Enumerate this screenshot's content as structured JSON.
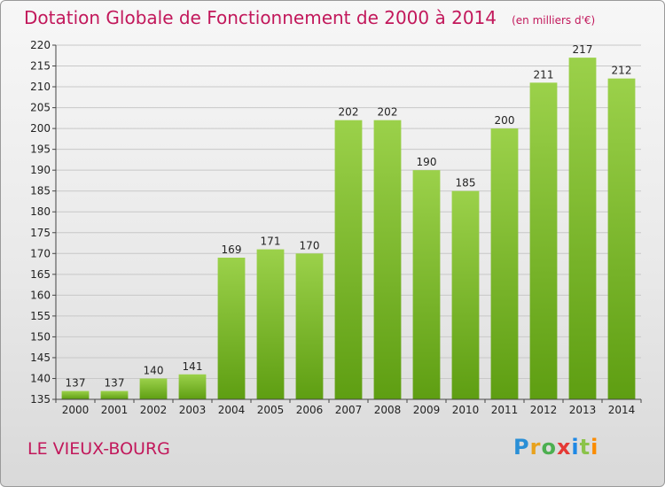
{
  "header": {
    "title": "Dotation Globale de Fonctionnement de 2000 à 2014",
    "unit": "(en milliers d'€)"
  },
  "footer": {
    "commune": "LE VIEUX-BOURG",
    "logo_letters": [
      "P",
      "r",
      "o",
      "x",
      "i",
      "t",
      "i"
    ],
    "logo_colors": [
      "#2a8fd6",
      "#e8a21d",
      "#4caf50",
      "#e53935",
      "#1e88e5",
      "#8bc34a",
      "#fb8c00"
    ]
  },
  "chart_data": {
    "type": "bar",
    "title": "Dotation Globale de Fonctionnement de 2000 à 2014",
    "xlabel": "",
    "ylabel": "",
    "categories": [
      "2000",
      "2001",
      "2002",
      "2003",
      "2004",
      "2005",
      "2006",
      "2007",
      "2008",
      "2009",
      "2010",
      "2011",
      "2012",
      "2013",
      "2014"
    ],
    "values": [
      137,
      137,
      140,
      141,
      169,
      171,
      170,
      202,
      202,
      190,
      185,
      200,
      211,
      217,
      212
    ],
    "ylim": [
      135,
      220
    ],
    "yticks": [
      135,
      140,
      145,
      150,
      155,
      160,
      165,
      170,
      175,
      180,
      185,
      190,
      195,
      200,
      205,
      210,
      215,
      220
    ],
    "grid": true,
    "bar_color_top": "#9bd14a",
    "bar_color_bottom": "#5e9e12"
  }
}
